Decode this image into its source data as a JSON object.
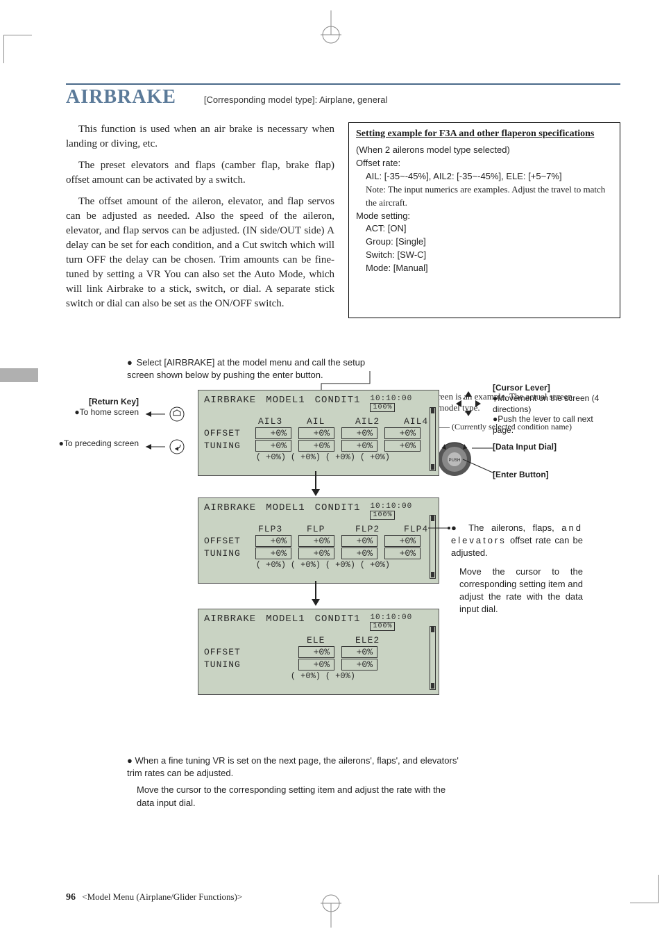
{
  "header": {
    "title": "AIRBRAKE",
    "subtitle": "[Corresponding model type]: Airplane, general",
    "hr_color": "#4a6a8a",
    "title_color": "#5b7a99"
  },
  "body_paragraphs": [
    "This function is used when an air brake is necessary when landing or diving, etc.",
    "The preset elevators and flaps (camber flap, brake flap) offset amount can be activated by a switch.",
    "The offset amount of the aileron, elevator, and flap servos can be adjusted as needed. Also the speed of the aileron, elevator, and flap servos can be adjusted. (IN side/OUT side) A delay can be set for each condition, and a Cut switch which will turn OFF the delay can be chosen. Trim amounts can be fine-tuned by setting a VR You can also set the Auto Mode, which will link Airbrake to a stick, switch, or dial. A separate stick switch or dial can also be set as the ON/OFF switch."
  ],
  "example_box": {
    "title": "Setting example for F3A and other flaperon specifications",
    "when": "(When 2 ailerons model type selected)",
    "offset_label": "Offset rate:",
    "offset_line": "AIL: [-35~-45%], AIL2: [-35~-45%], ELE: [+5~7%]",
    "note": "Note: The input numerics are examples. Adjust the travel to match the aircraft.",
    "mode_label": "Mode setting:",
    "mode_lines": [
      "ACT: [ON]",
      "Group: [Single]",
      "Switch: [SW-C]",
      "Mode: [Manual]"
    ]
  },
  "mid_instruction": "Select [AIRBRAKE] at the model menu and call the setup screen shown below by pushing the enter button.",
  "top_right_note": "*The display screen is an example. The actual screen depends on the model type.",
  "condition_note": "(Currently selected condition name)",
  "left_callouts": {
    "return_key": "[Return Key]",
    "to_home": "To home screen",
    "to_preceding": "To preceding screen"
  },
  "right_callouts": {
    "cursor_lever": "[Cursor Lever]",
    "cursor_desc1": "Movement on the screen (4 directions)",
    "cursor_desc2": "Push the lever to call next page.",
    "data_dial": "[Data Input Dial]",
    "enter_button": "[Enter Button]",
    "push": "PUSH"
  },
  "right_paragraph": {
    "p1_part1": "The ailerons, flaps,",
    "p1_part2": "and elevators",
    "p1_part3": "offset rate can be adjusted.",
    "p2": "Move the cursor to the corresponding setting item and adjust the rate with the data input dial."
  },
  "lcd_common": {
    "screen_title": "AIRBRAKE",
    "model": "MODEL1",
    "condition": "CONDIT1",
    "time": "10:10:00",
    "battery": "100%",
    "offset_label": "OFFSET",
    "tuning_label": "TUNING",
    "bg_color": "#c9d3c3"
  },
  "lcd_screens": [
    {
      "headers": [
        "AIL3",
        "AIL",
        "AIL2",
        "AIL4"
      ],
      "offset": [
        "+0%",
        "+0%",
        "+0%",
        "+0%"
      ],
      "tuning": [
        "+0%",
        "+0%",
        "+0%",
        "+0%"
      ],
      "sub": [
        "(  +0%)",
        "(  +0%)",
        "(  +0%)",
        "(  +0%)"
      ]
    },
    {
      "headers": [
        "FLP3",
        "FLP",
        "FLP2",
        "FLP4"
      ],
      "offset": [
        "+0%",
        "+0%",
        "+0%",
        "+0%"
      ],
      "tuning": [
        "+0%",
        "+0%",
        "+0%",
        "+0%"
      ],
      "sub": [
        "(  +0%)",
        "(  +0%)",
        "(  +0%)",
        "(  +0%)"
      ]
    },
    {
      "headers": [
        "",
        "ELE",
        "ELE2",
        ""
      ],
      "offset": [
        "",
        "+0%",
        "+0%",
        ""
      ],
      "tuning": [
        "",
        "+0%",
        "+0%",
        ""
      ],
      "sub": [
        "",
        "(  +0%)",
        "(  +0%)",
        ""
      ]
    }
  ],
  "bottom_note": {
    "p1": "When a fine tuning VR is set on the next page, the ailerons', flaps', and elevators' trim rates can be adjusted.",
    "p2": "Move the cursor to the corresponding setting item and adjust the rate with the data input dial."
  },
  "footer": {
    "page_number": "96",
    "section": "<Model Menu (Airplane/Glider Functions)>"
  }
}
